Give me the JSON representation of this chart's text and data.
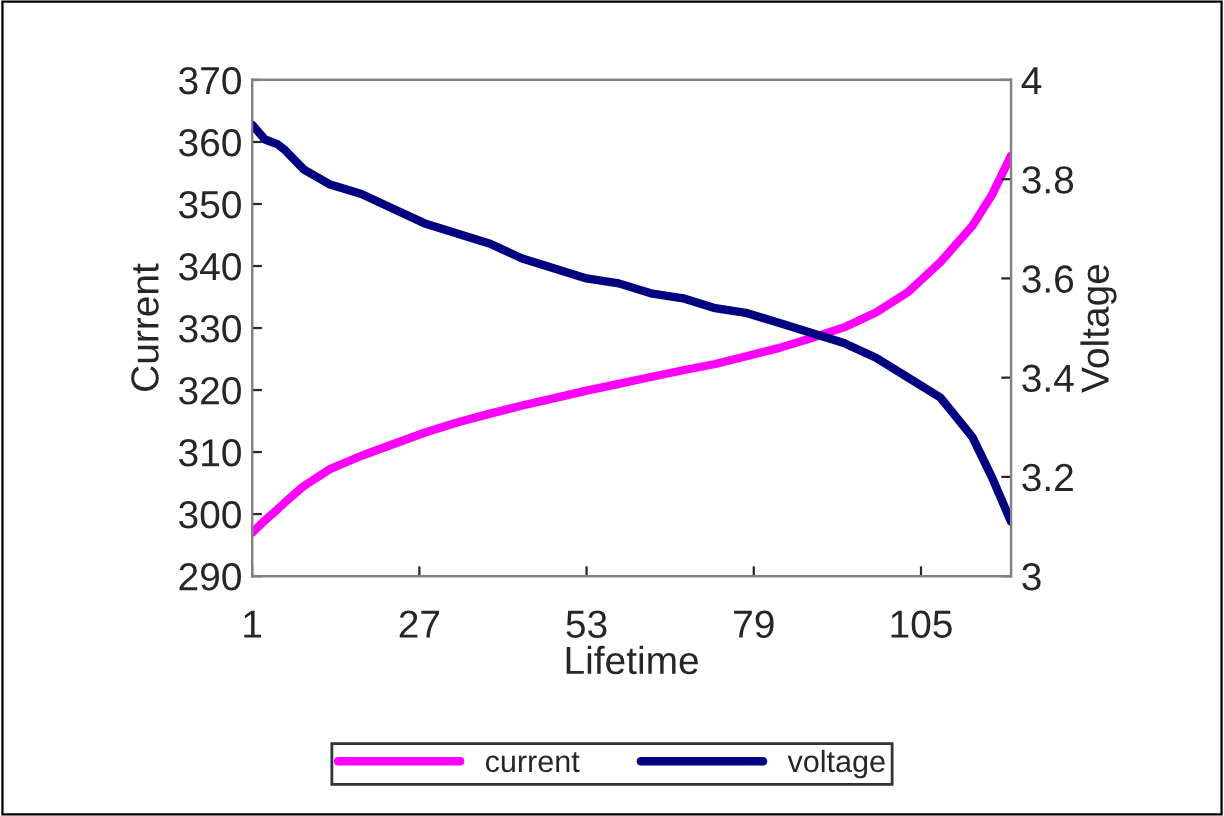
{
  "chart_data": {
    "type": "line",
    "xlabel": "Lifetime",
    "ylabel": "Current",
    "y2label": "Voltage",
    "x": [
      1,
      3,
      5,
      6,
      9,
      13,
      18,
      23,
      28,
      33,
      38,
      43,
      48,
      53,
      58,
      63,
      68,
      73,
      78,
      83,
      88,
      93,
      98,
      103,
      108,
      113,
      116,
      119
    ],
    "series": [
      {
        "name": "current",
        "color": "#ff00ff",
        "values": [
          297.0,
          299,
          300.8,
          301.8,
          304.5,
          307.2,
          309.4,
          311.3,
          313.2,
          314.8,
          316.2,
          317.5,
          318.7,
          319.9,
          321.0,
          322.1,
          323.2,
          324.2,
          325.5,
          326.8,
          328.4,
          330.1,
          332.5,
          335.8,
          340.6,
          346.5,
          351.4,
          357.8
        ]
      },
      {
        "name": "voltage",
        "color": "#000080",
        "axis": "y2",
        "values": [
          3.91,
          3.88,
          3.87,
          3.86,
          3.82,
          3.79,
          3.77,
          3.74,
          3.71,
          3.69,
          3.67,
          3.64,
          3.62,
          3.6,
          3.59,
          3.57,
          3.56,
          3.54,
          3.53,
          3.51,
          3.49,
          3.47,
          3.44,
          3.4,
          3.36,
          3.28,
          3.2,
          3.11
        ]
      }
    ],
    "xlim": [
      1,
      119
    ],
    "xticks": [
      1,
      27,
      53,
      79,
      105
    ],
    "ylim": [
      290,
      370
    ],
    "yticks": [
      290,
      300,
      310,
      320,
      330,
      340,
      350,
      360,
      370
    ],
    "y2lim": [
      3,
      4
    ],
    "y2ticks": [
      3,
      3.2,
      3.4,
      3.6,
      3.8,
      4
    ],
    "legend": "bottom",
    "grid": false,
    "marker": "none",
    "line_style": "solid"
  }
}
